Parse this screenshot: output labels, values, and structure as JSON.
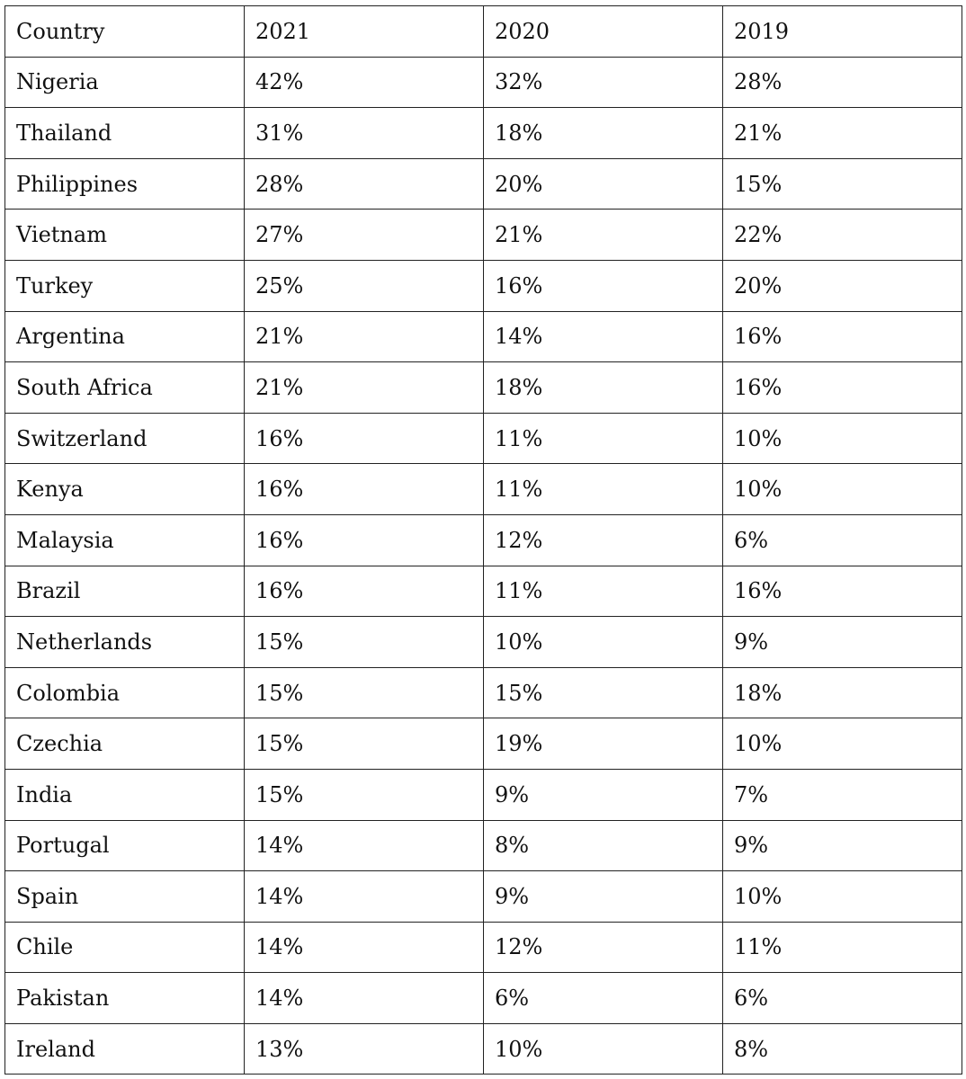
{
  "table": {
    "headers": [
      "Country",
      "2021",
      "2020",
      "2019"
    ],
    "rows": [
      [
        "Nigeria",
        "42%",
        "32%",
        "28%"
      ],
      [
        "Thailand",
        "31%",
        "18%",
        "21%"
      ],
      [
        "Philippines",
        "28%",
        "20%",
        "15%"
      ],
      [
        "Vietnam",
        "27%",
        "21%",
        "22%"
      ],
      [
        "Turkey",
        "25%",
        "16%",
        "20%"
      ],
      [
        "Argentina",
        "21%",
        "14%",
        "16%"
      ],
      [
        "South Africa",
        "21%",
        "18%",
        "16%"
      ],
      [
        "Switzerland",
        "16%",
        "11%",
        "10%"
      ],
      [
        "Kenya",
        "16%",
        "11%",
        "10%"
      ],
      [
        "Malaysia",
        "16%",
        "12%",
        "6%"
      ],
      [
        "Brazil",
        "16%",
        "11%",
        "16%"
      ],
      [
        "Netherlands",
        "15%",
        "10%",
        "9%"
      ],
      [
        "Colombia",
        "15%",
        "15%",
        "18%"
      ],
      [
        "Czechia",
        "15%",
        "19%",
        "10%"
      ],
      [
        "India",
        "15%",
        "9%",
        "7%"
      ],
      [
        "Portugal",
        "14%",
        "8%",
        "9%"
      ],
      [
        "Spain",
        "14%",
        "9%",
        "10%"
      ],
      [
        "Chile",
        "14%",
        "12%",
        "11%"
      ],
      [
        "Pakistan",
        "14%",
        "6%",
        "6%"
      ],
      [
        "Ireland",
        "13%",
        "10%",
        "8%"
      ]
    ]
  }
}
